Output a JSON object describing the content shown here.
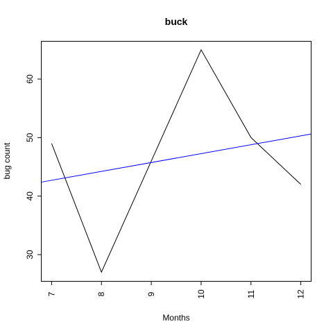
{
  "chart_data": {
    "type": "line",
    "title": "buck",
    "xlabel": "Months",
    "ylabel": "bug count",
    "x": [
      7,
      8,
      9,
      10,
      11,
      12
    ],
    "series": [
      {
        "values": [
          49,
          27,
          46,
          65,
          50,
          42
        ],
        "color": "#000000"
      }
    ],
    "trendline": {
      "x": [
        6.8,
        12.2
      ],
      "y": [
        42.4,
        50.6
      ],
      "color": "#0000ff"
    },
    "xticks": [
      7,
      8,
      9,
      10,
      11,
      12
    ],
    "xtick_labels": [
      "7",
      "8",
      "9",
      "10",
      "11",
      "12"
    ],
    "yticks": [
      30,
      40,
      50,
      60
    ],
    "ytick_labels": [
      "30",
      "40",
      "50",
      "60"
    ],
    "xlim": [
      6.8,
      12.2
    ],
    "ylim": [
      25.5,
      66.4
    ],
    "grid": false,
    "legend": "none"
  }
}
